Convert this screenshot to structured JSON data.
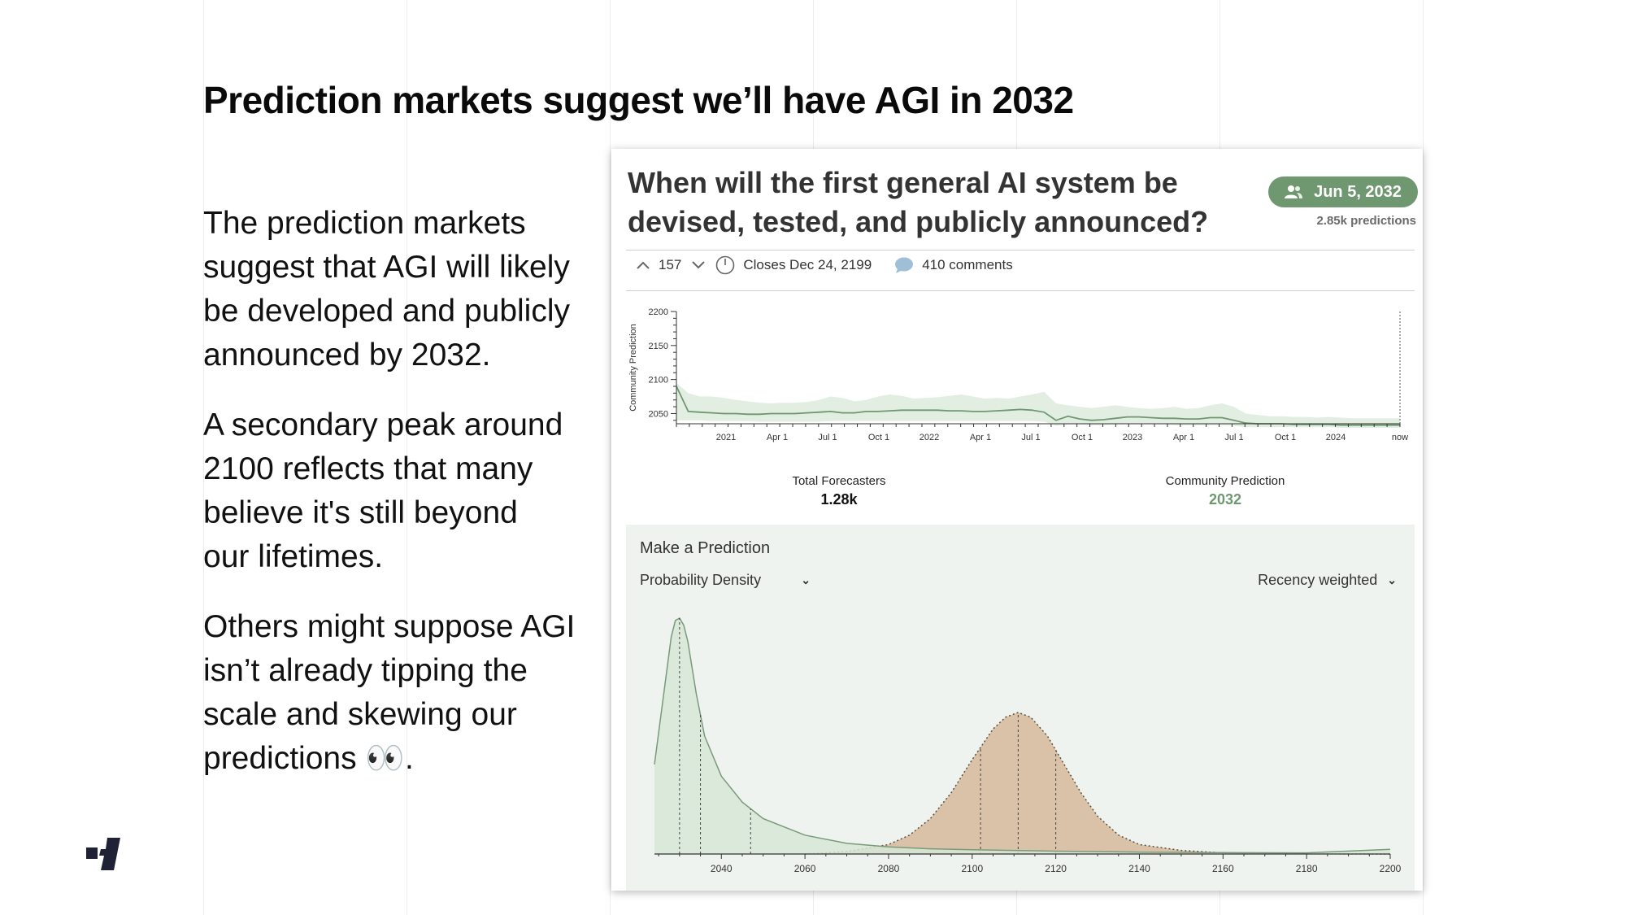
{
  "slide": {
    "title": "Prediction markets suggest we’ll have AGI in 2032",
    "paragraphs": [
      [
        "The prediction markets",
        "suggest that AGI will likely",
        "be developed and publicly",
        "announced by 2032."
      ],
      [
        "A secondary peak around",
        "2100 reflects that many",
        "believe it's still beyond",
        "our lifetimes."
      ],
      [
        "Others might suppose AGI",
        "isn’t already tipping the",
        "scale and skewing our",
        "predictions 👀."
      ]
    ]
  },
  "question": {
    "title_lines": [
      "When will the first general AI system be",
      "devised, tested, and publicly announced?"
    ],
    "community_date": "Jun 5, 2032",
    "predictions": "2.85k predictions",
    "votes": "157",
    "closes": "Closes Dec 24, 2199",
    "comments": "410 comments",
    "total_forecasters_label": "Total Forecasters",
    "total_forecasters": "1.28k",
    "community_prediction_label": "Community Prediction",
    "community_prediction": "2032"
  },
  "prediction_panel": {
    "title": "Make a Prediction",
    "left_select": "Probability Density",
    "right_select": "Recency weighted"
  },
  "colors": {
    "green": "#6f9870",
    "green_fill": "#dbeadb",
    "tan_fill": "#d8bfa3",
    "panel_bg": "#eef3f0"
  },
  "chart_data": [
    {
      "type": "line",
      "ylabel": "Community Prediction",
      "ylim": [
        2035,
        2200
      ],
      "yticks": [
        2050,
        2100,
        2150,
        2200
      ],
      "xticks": [
        "2021",
        "Apr 1",
        "Jul 1",
        "Oct 1",
        "2022",
        "Apr 1",
        "Jul 1",
        "Oct 1",
        "2023",
        "Apr 1",
        "Jul 1",
        "Oct 1",
        "2024",
        "now"
      ],
      "series": [
        {
          "values": [
            2090,
            2053,
            2052,
            2051,
            2050,
            2050,
            2049,
            2049,
            2050,
            2050,
            2050,
            2051,
            2052,
            2053,
            2051,
            2051,
            2053,
            2053,
            2054,
            2055,
            2055,
            2055,
            2055,
            2054,
            2054,
            2053,
            2053,
            2054,
            2055,
            2056,
            2055,
            2052,
            2040,
            2046,
            2042,
            2040,
            2041,
            2043,
            2045,
            2045,
            2044,
            2043,
            2043,
            2042,
            2042,
            2044,
            2044,
            2040,
            2036,
            2035,
            2035,
            2035,
            2034,
            2034,
            2034,
            2034,
            2033,
            2033,
            2033,
            2033,
            2033,
            2033
          ],
          "band_upper": [
            2095,
            2080,
            2075,
            2075,
            2073,
            2070,
            2068,
            2066,
            2065,
            2066,
            2066,
            2067,
            2070,
            2075,
            2073,
            2068,
            2070,
            2075,
            2078,
            2076,
            2072,
            2073,
            2074,
            2076,
            2078,
            2075,
            2072,
            2073,
            2072,
            2075,
            2078,
            2082,
            2065,
            2062,
            2060,
            2058,
            2060,
            2062,
            2060,
            2058,
            2057,
            2058,
            2060,
            2057,
            2058,
            2062,
            2065,
            2060,
            2050,
            2048,
            2046,
            2046,
            2045,
            2045,
            2044,
            2045,
            2044,
            2043,
            2043,
            2043,
            2043,
            2043
          ],
          "band_lower": [
            2040,
            2040,
            2040,
            2039,
            2039,
            2039,
            2039,
            2038,
            2038,
            2038,
            2038,
            2038,
            2038,
            2039,
            2039,
            2039,
            2039,
            2039,
            2039,
            2039,
            2039,
            2039,
            2039,
            2039,
            2039,
            2039,
            2039,
            2039,
            2039,
            2039,
            2039,
            2038,
            2032,
            2034,
            2034,
            2033,
            2033,
            2034,
            2034,
            2034,
            2034,
            2034,
            2033,
            2033,
            2033,
            2033,
            2033,
            2032,
            2030,
            2030,
            2030,
            2030,
            2030,
            2030,
            2030,
            2030,
            2029,
            2029,
            2029,
            2029,
            2029,
            2029
          ]
        }
      ]
    },
    {
      "type": "area",
      "xlim": [
        2024,
        2200
      ],
      "xticks": [
        2040,
        2060,
        2080,
        2100,
        2120,
        2140,
        2160,
        2180,
        2200
      ],
      "series": [
        {
          "name": "",
          "peak": 2030,
          "quartile_lines": [
            2030,
            2035,
            2047
          ],
          "x": [
            2024,
            2026,
            2028,
            2029,
            2030,
            2031,
            2032,
            2034,
            2036,
            2040,
            2045,
            2050,
            2060,
            2070,
            2080,
            2090,
            2100,
            2110,
            2120,
            2140,
            2160,
            2180,
            2200
          ],
          "values": [
            0.38,
            0.65,
            0.92,
            0.99,
            1.0,
            0.97,
            0.9,
            0.68,
            0.5,
            0.33,
            0.22,
            0.15,
            0.08,
            0.045,
            0.03,
            0.022,
            0.018,
            0.015,
            0.012,
            0.008,
            0.006,
            0.005,
            0.02
          ]
        },
        {
          "name": "",
          "peak": 2111,
          "quartile_lines": [
            2102,
            2111,
            2120
          ],
          "x": [
            2060,
            2070,
            2080,
            2085,
            2090,
            2095,
            2100,
            2105,
            2108,
            2111,
            2114,
            2118,
            2122,
            2126,
            2130,
            2135,
            2140,
            2150,
            2160,
            2170,
            2180,
            2200
          ],
          "values": [
            0.0,
            0.01,
            0.04,
            0.08,
            0.15,
            0.26,
            0.4,
            0.53,
            0.58,
            0.6,
            0.58,
            0.5,
            0.38,
            0.26,
            0.16,
            0.08,
            0.04,
            0.015,
            0.005,
            0.002,
            0.001,
            0.0
          ]
        }
      ]
    }
  ]
}
